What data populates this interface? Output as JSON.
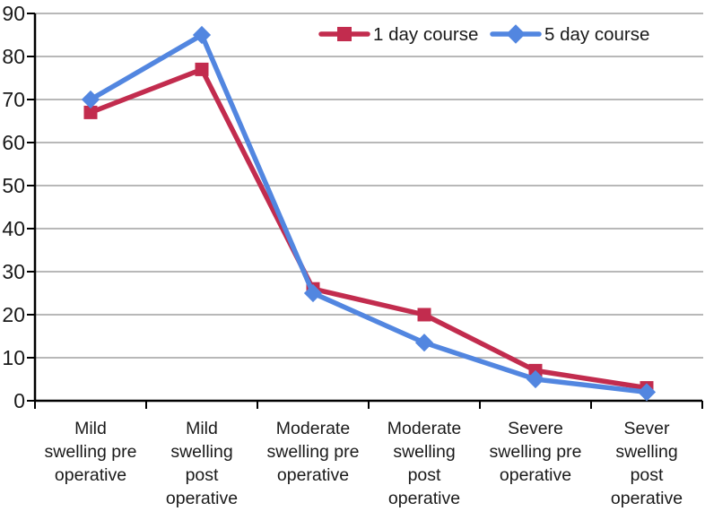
{
  "chart_data": {
    "type": "line",
    "title": "",
    "xlabel": "",
    "ylabel": "",
    "categories": [
      "Mild swelling pre operative",
      "Mild swelling post operative",
      "Moderate swelling pre operative",
      "Moderate swelling post operative",
      "Severe swelling pre operative",
      "Sever swelling post operative"
    ],
    "category_label_lines": [
      [
        "Mild",
        "swelling pre",
        "operative"
      ],
      [
        "Mild",
        "swelling",
        "post",
        "operative"
      ],
      [
        "Moderate",
        "swelling pre",
        "operative"
      ],
      [
        "Moderate",
        "swelling",
        "post",
        "operative"
      ],
      [
        "Severe",
        "swelling pre",
        "operative"
      ],
      [
        "Sever",
        "swelling",
        "post",
        "operative"
      ]
    ],
    "series": [
      {
        "name": "1 day course",
        "marker": "square",
        "color": "#C22C4E",
        "values": [
          67,
          77,
          26,
          20,
          7,
          3
        ]
      },
      {
        "name": "5 day course",
        "marker": "diamond",
        "color": "#5286E0",
        "values": [
          70,
          85,
          25,
          13.5,
          5,
          2
        ]
      }
    ],
    "ylim": [
      0,
      90
    ],
    "y_ticks": [
      0,
      10,
      20,
      30,
      40,
      50,
      60,
      70,
      80,
      90
    ],
    "y_tick_labels": [
      "0",
      "10",
      "20",
      "30",
      "40",
      "50",
      "60",
      "70",
      "80",
      "90"
    ],
    "grid": true,
    "legend_position": "top"
  },
  "styles": {
    "background": "#FFFFFF",
    "axis_color": "#000000",
    "grid_color": "#A0A0A0",
    "text_color": "#1A1A1A",
    "series_1_color": "#C22C4E",
    "series_2_color": "#5286E0"
  }
}
